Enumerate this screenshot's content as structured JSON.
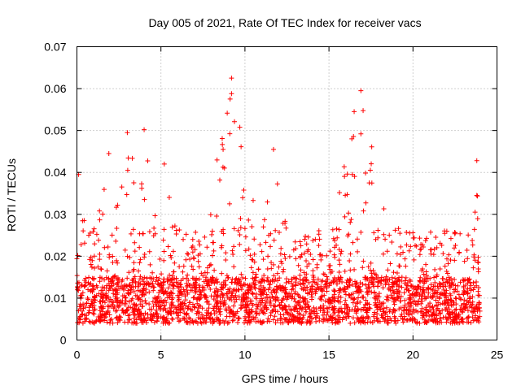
{
  "chart_data": {
    "type": "scatter",
    "title": "Day 005 of 2021, Rate Of TEC Index for receiver vacs",
    "xlabel": "GPS time / hours",
    "ylabel": "ROTI / TECUs",
    "xlim": [
      0,
      25
    ],
    "ylim": [
      0,
      0.07
    ],
    "xticks": [
      0,
      5,
      10,
      15,
      20,
      25
    ],
    "yticks": [
      0,
      0.01,
      0.02,
      0.03,
      0.04,
      0.05,
      0.06,
      0.07
    ],
    "xtick_labels": [
      "0",
      "5",
      "10",
      "15",
      "20",
      "25"
    ],
    "ytick_labels": [
      "0",
      "0.01",
      "0.02",
      "0.03",
      "0.04",
      "0.05",
      "0.06",
      "0.07"
    ],
    "grid": true,
    "marker": "+",
    "marker_color": "#ff0000",
    "data_range_hours": [
      0,
      24
    ],
    "baseline_band": [
      0.004,
      0.015
    ],
    "notable_peaks": [
      {
        "x": 0.1,
        "y": 0.0395
      },
      {
        "x": 1.9,
        "y": 0.0445
      },
      {
        "x": 3.0,
        "y": 0.0495
      },
      {
        "x": 4.0,
        "y": 0.0502
      },
      {
        "x": 5.2,
        "y": 0.042
      },
      {
        "x": 8.7,
        "y": 0.0455
      },
      {
        "x": 9.2,
        "y": 0.0625
      },
      {
        "x": 9.2,
        "y": 0.0588
      },
      {
        "x": 11.7,
        "y": 0.0455
      },
      {
        "x": 16.5,
        "y": 0.0545
      },
      {
        "x": 16.9,
        "y": 0.0595
      },
      {
        "x": 16.9,
        "y": 0.0492
      },
      {
        "x": 23.8,
        "y": 0.0428
      }
    ]
  }
}
